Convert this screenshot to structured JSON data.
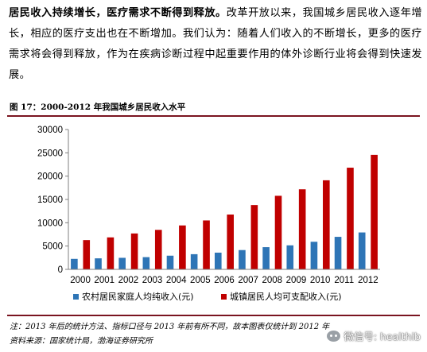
{
  "paragraph": {
    "bold": "居民收入持续增长，医疗需求不断得到释放。",
    "rest": "改革开放以来，我国城乡居民收入逐年增长，相应的医疗支出也在不断增加。我们认为：随着人们收入的不断增长，更多的医疗需求将会得到释放，作为在疾病诊断过程中起重要作用的体外诊断行业将会得到快速发展。"
  },
  "figure": {
    "title": "图 17：2000-2012 年我国城乡居民收入水平",
    "note": "注：2013 年后的统计方法、指标口径与 2013 年前有所不同，故本图表仅统计到 2012 年",
    "source": "资料来源：国家统计局，渤海证券研究所"
  },
  "chart_data": {
    "type": "bar",
    "categories": [
      "2000",
      "2001",
      "2002",
      "2003",
      "2004",
      "2005",
      "2006",
      "2007",
      "2008",
      "2009",
      "2010",
      "2011",
      "2012"
    ],
    "series": [
      {
        "name": "农村居民家庭人均纯收入(元)",
        "color": "#2e75b6",
        "values": [
          2253,
          2366,
          2476,
          2622,
          2936,
          3255,
          3587,
          4140,
          4761,
          5153,
          5919,
          6977,
          7917
        ]
      },
      {
        "name": "城镇居民人均可支配收入(元)",
        "color": "#c00000",
        "values": [
          6280,
          6860,
          7703,
          8472,
          9422,
          10493,
          11759,
          13786,
          15781,
          17175,
          19109,
          21810,
          24565
        ]
      }
    ],
    "ylim": [
      0,
      30000
    ],
    "yticks": [
      0,
      5000,
      10000,
      15000,
      20000,
      25000,
      30000
    ],
    "grid": false,
    "legend_position": "bottom"
  },
  "watermark": {
    "text": "微信号: healthib",
    "icon": "wechat-icon"
  }
}
